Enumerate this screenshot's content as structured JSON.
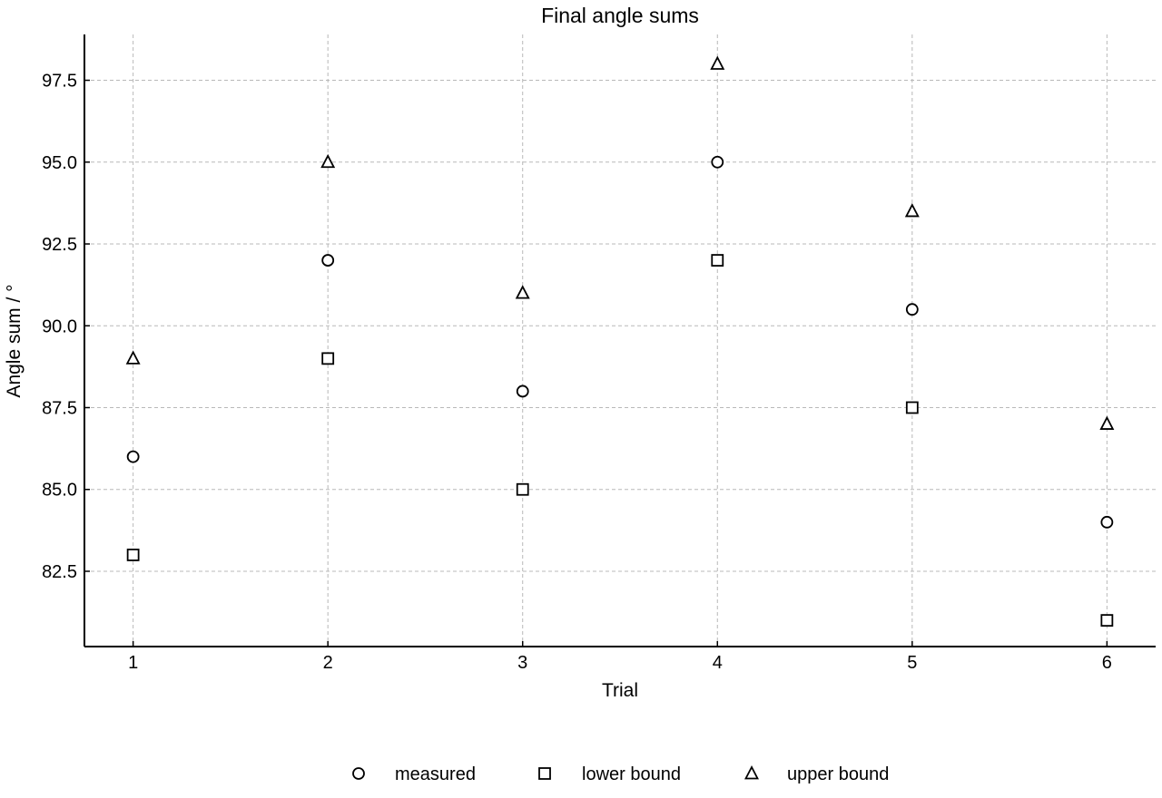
{
  "chart_data": {
    "type": "scatter",
    "title": "Final angle sums",
    "xlabel": "Trial",
    "ylabel": "Angle sum / °",
    "x": [
      1,
      2,
      3,
      4,
      5,
      6
    ],
    "xticks": [
      "1",
      "2",
      "3",
      "4",
      "5",
      "6"
    ],
    "yticks": [
      "82.5",
      "85.0",
      "87.5",
      "90.0",
      "92.5",
      "95.0",
      "97.5"
    ],
    "xlim": [
      0.75,
      6.25
    ],
    "ylim": [
      80.2,
      98.9
    ],
    "grid": true,
    "legend_position": "bottom-center",
    "series": [
      {
        "name": "measured",
        "marker": "circle",
        "values": [
          86,
          92,
          88,
          95,
          90.5,
          84
        ]
      },
      {
        "name": "lower bound",
        "marker": "square",
        "values": [
          83,
          89,
          85,
          92,
          87.5,
          81
        ]
      },
      {
        "name": "upper bound",
        "marker": "triangle",
        "values": [
          89,
          95,
          91,
          98,
          93.5,
          87
        ]
      }
    ],
    "colors": {
      "marker_edge": "#000000",
      "marker_fill": "#ffffff",
      "grid": "#b8b8b8"
    }
  }
}
